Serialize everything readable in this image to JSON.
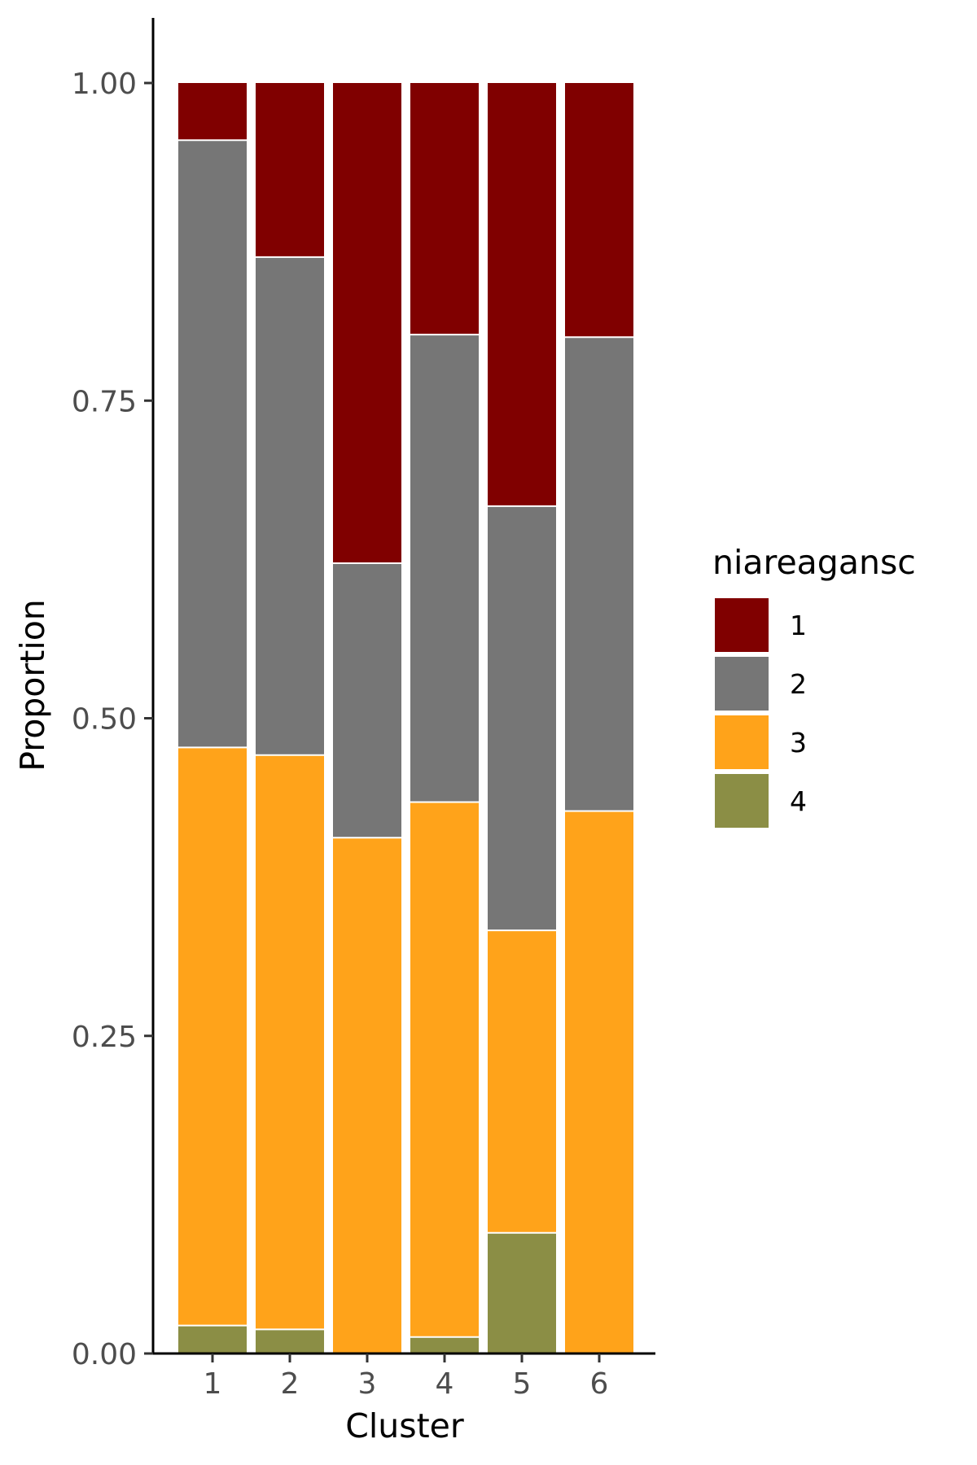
{
  "chart_data": {
    "type": "bar",
    "stacked": true,
    "xlabel": "Cluster",
    "ylabel": "Proportion",
    "ylim": [
      0,
      1
    ],
    "yticks": [
      "0.00",
      "0.25",
      "0.50",
      "0.75",
      "1.00"
    ],
    "categories": [
      "1",
      "2",
      "3",
      "4",
      "5",
      "6"
    ],
    "legend_title": "niareagansc",
    "legend_position": "right",
    "grid": false,
    "series": [
      {
        "name": "4",
        "color": "#8B8E45",
        "values": [
          0.022,
          0.019,
          0.0,
          0.013,
          0.095,
          0.0
        ]
      },
      {
        "name": "3",
        "color": "#FFA31A",
        "values": [
          0.455,
          0.452,
          0.406,
          0.421,
          0.238,
          0.427
        ]
      },
      {
        "name": "2",
        "color": "#767676",
        "values": [
          0.478,
          0.392,
          0.216,
          0.368,
          0.334,
          0.373
        ]
      },
      {
        "name": "1",
        "color": "#800000",
        "values": [
          0.045,
          0.137,
          0.378,
          0.198,
          0.333,
          0.2
        ]
      }
    ],
    "legend_order": [
      "1",
      "2",
      "3",
      "4"
    ]
  }
}
